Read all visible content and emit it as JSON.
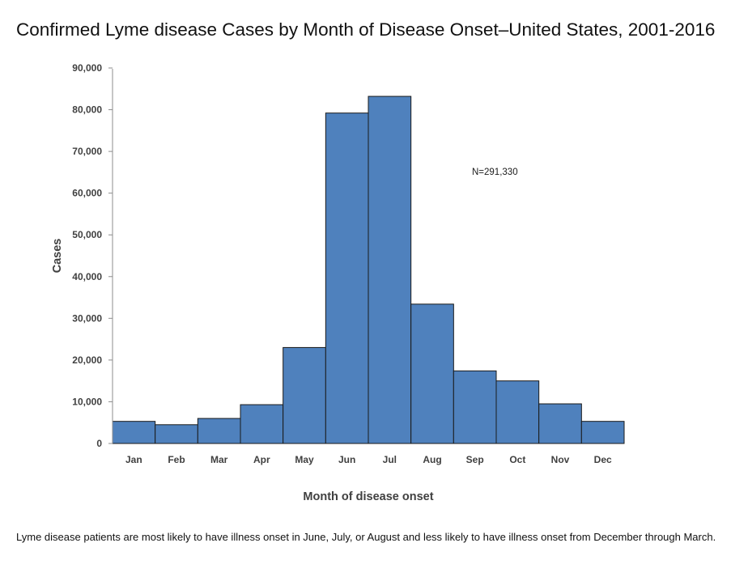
{
  "page": {
    "title": "Confirmed Lyme disease Cases by Month of Disease Onset–United States, 2001-2016",
    "caption": "Lyme disease patients are most likely to have illness onset in June, July, or August and less likely to have illness onset from December through March."
  },
  "chart_data": {
    "type": "bar",
    "title": "",
    "xlabel": "Month of disease onset",
    "ylabel": "Cases",
    "categories": [
      "Jan",
      "Feb",
      "Mar",
      "Apr",
      "May",
      "Jun",
      "Jul",
      "Aug",
      "Sep",
      "Oct",
      "Nov",
      "Dec"
    ],
    "values": [
      5300,
      4500,
      6000,
      9300,
      23000,
      79200,
      83200,
      33400,
      17400,
      15000,
      9500,
      5300
    ],
    "ylim": [
      0,
      90000
    ],
    "yticks": [
      0,
      10000,
      20000,
      30000,
      40000,
      50000,
      60000,
      70000,
      80000,
      90000
    ],
    "ytick_labels": [
      "0",
      "10,000",
      "20,000",
      "30,000",
      "40,000",
      "50,000",
      "60,000",
      "70,000",
      "80,000",
      "90,000"
    ],
    "annotation": "N=291,330",
    "bar_color": "#4f81bd",
    "bar_edge_color": "#1a1a1a",
    "grid": false,
    "legend": "none"
  }
}
